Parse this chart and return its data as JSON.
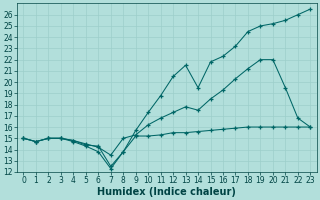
{
  "xlabel": "Humidex (Indice chaleur)",
  "background_color": "#b2dfdb",
  "line_color": "#006666",
  "xlim": [
    -0.5,
    23.5
  ],
  "ylim": [
    12,
    27
  ],
  "xticks": [
    0,
    1,
    2,
    3,
    4,
    5,
    6,
    7,
    8,
    9,
    10,
    11,
    12,
    13,
    14,
    15,
    16,
    17,
    18,
    19,
    20,
    21,
    22,
    23
  ],
  "yticks": [
    12,
    13,
    14,
    15,
    16,
    17,
    18,
    19,
    20,
    21,
    22,
    23,
    24,
    25,
    26
  ],
  "series_max_x": [
    0,
    1,
    2,
    3,
    4,
    5,
    6,
    7,
    8,
    9,
    10,
    11,
    12,
    13,
    14,
    15,
    16,
    17,
    18,
    19,
    20,
    21,
    22,
    23
  ],
  "series_max_y": [
    15.0,
    14.7,
    15.0,
    15.0,
    14.7,
    14.3,
    13.8,
    12.3,
    13.8,
    15.7,
    17.3,
    18.8,
    20.5,
    21.5,
    19.5,
    21.8,
    22.3,
    23.2,
    24.5,
    25.0,
    25.2,
    25.5,
    26.0,
    26.5
  ],
  "series_mid_x": [
    0,
    1,
    2,
    3,
    4,
    5,
    6,
    7,
    8,
    9,
    10,
    11,
    12,
    13,
    14,
    15,
    16,
    17,
    18,
    19,
    20,
    21,
    22,
    23
  ],
  "series_mid_y": [
    15.0,
    14.7,
    15.0,
    15.0,
    14.8,
    14.5,
    14.2,
    13.5,
    15.0,
    15.3,
    16.2,
    16.8,
    17.3,
    17.8,
    17.5,
    18.5,
    19.3,
    20.3,
    21.2,
    22.0,
    22.0,
    19.5,
    16.8,
    16.0
  ],
  "series_min_x": [
    0,
    1,
    2,
    3,
    4,
    5,
    6,
    7,
    8,
    9,
    10,
    11,
    12,
    13,
    14,
    15,
    16,
    17,
    18,
    19,
    20,
    21,
    22,
    23
  ],
  "series_min_y": [
    15.0,
    14.7,
    15.0,
    15.0,
    14.8,
    14.4,
    14.3,
    12.5,
    13.8,
    15.2,
    15.2,
    15.3,
    15.5,
    15.5,
    15.6,
    15.7,
    15.8,
    15.9,
    16.0,
    16.0,
    16.0,
    16.0,
    16.0,
    16.0
  ],
  "grid_color": "#9dcfca",
  "font_color": "#004444",
  "tick_fontsize": 5.5,
  "xlabel_fontsize": 7.0
}
